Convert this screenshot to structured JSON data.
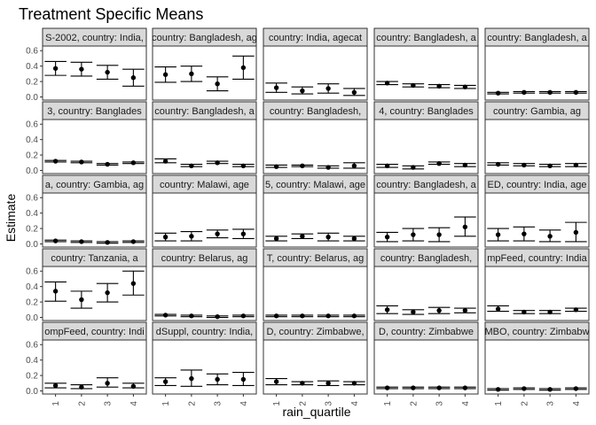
{
  "chart_data": {
    "type": "scatter",
    "title": "Treatment Specific Means",
    "xlabel": "rain_quartile",
    "ylabel": "Estimate",
    "categories": [
      "1",
      "2",
      "3",
      "4"
    ],
    "y_ticks": [
      "0.0",
      "0.2",
      "0.4",
      "0.6"
    ],
    "ylim": [
      -0.04,
      0.66
    ],
    "grid": true,
    "layout": {
      "rows": 5,
      "cols": 5
    },
    "panels": [
      {
        "strip": "S-2002, country: India,",
        "points": [
          {
            "x": "1",
            "est": 0.37,
            "lo": 0.28,
            "hi": 0.46
          },
          {
            "x": "2",
            "est": 0.36,
            "lo": 0.27,
            "hi": 0.45
          },
          {
            "x": "3",
            "est": 0.32,
            "lo": 0.23,
            "hi": 0.41
          },
          {
            "x": "4",
            "est": 0.25,
            "lo": 0.14,
            "hi": 0.36
          }
        ]
      },
      {
        "strip": "country: Bangladesh, ag",
        "points": [
          {
            "x": "1",
            "est": 0.29,
            "lo": 0.19,
            "hi": 0.39
          },
          {
            "x": "2",
            "est": 0.3,
            "lo": 0.2,
            "hi": 0.4
          },
          {
            "x": "3",
            "est": 0.17,
            "lo": 0.08,
            "hi": 0.26
          },
          {
            "x": "4",
            "est": 0.38,
            "lo": 0.23,
            "hi": 0.53
          }
        ]
      },
      {
        "strip": "country: India, agecat",
        "points": [
          {
            "x": "1",
            "est": 0.12,
            "lo": 0.06,
            "hi": 0.18
          },
          {
            "x": "2",
            "est": 0.08,
            "lo": 0.04,
            "hi": 0.13
          },
          {
            "x": "3",
            "est": 0.11,
            "lo": 0.05,
            "hi": 0.17
          },
          {
            "x": "4",
            "est": 0.06,
            "lo": 0.02,
            "hi": 0.11
          }
        ]
      },
      {
        "strip": "country: Bangladesh, a",
        "points": [
          {
            "x": "1",
            "est": 0.18,
            "lo": 0.16,
            "hi": 0.2
          },
          {
            "x": "2",
            "est": 0.15,
            "lo": 0.13,
            "hi": 0.17
          },
          {
            "x": "3",
            "est": 0.14,
            "lo": 0.12,
            "hi": 0.16
          },
          {
            "x": "4",
            "est": 0.13,
            "lo": 0.11,
            "hi": 0.15
          }
        ]
      },
      {
        "strip": "country: Bangladesh, a",
        "points": [
          {
            "x": "1",
            "est": 0.05,
            "lo": 0.04,
            "hi": 0.06
          },
          {
            "x": "2",
            "est": 0.06,
            "lo": 0.05,
            "hi": 0.07
          },
          {
            "x": "3",
            "est": 0.06,
            "lo": 0.05,
            "hi": 0.07
          },
          {
            "x": "4",
            "est": 0.06,
            "lo": 0.05,
            "hi": 0.07
          }
        ]
      },
      {
        "strip": "3, country: Banglades",
        "points": [
          {
            "x": "1",
            "est": 0.12,
            "lo": 0.11,
            "hi": 0.13
          },
          {
            "x": "2",
            "est": 0.11,
            "lo": 0.1,
            "hi": 0.12
          },
          {
            "x": "3",
            "est": 0.08,
            "lo": 0.07,
            "hi": 0.09
          },
          {
            "x": "4",
            "est": 0.1,
            "lo": 0.09,
            "hi": 0.11
          }
        ]
      },
      {
        "strip": "country: Bangladesh, a",
        "points": [
          {
            "x": "1",
            "est": 0.12,
            "lo": 0.1,
            "hi": 0.15
          },
          {
            "x": "2",
            "est": 0.06,
            "lo": 0.05,
            "hi": 0.08
          },
          {
            "x": "3",
            "est": 0.1,
            "lo": 0.09,
            "hi": 0.12
          },
          {
            "x": "4",
            "est": 0.06,
            "lo": 0.05,
            "hi": 0.08
          }
        ]
      },
      {
        "strip": "country: Bangladesh,",
        "points": [
          {
            "x": "1",
            "est": 0.05,
            "lo": 0.04,
            "hi": 0.07
          },
          {
            "x": "2",
            "est": 0.06,
            "lo": 0.05,
            "hi": 0.07
          },
          {
            "x": "3",
            "est": 0.04,
            "lo": 0.03,
            "hi": 0.06
          },
          {
            "x": "4",
            "est": 0.06,
            "lo": 0.03,
            "hi": 0.1
          }
        ]
      },
      {
        "strip": "4, country: Banglades",
        "points": [
          {
            "x": "1",
            "est": 0.06,
            "lo": 0.04,
            "hi": 0.08
          },
          {
            "x": "2",
            "est": 0.04,
            "lo": 0.02,
            "hi": 0.06
          },
          {
            "x": "3",
            "est": 0.09,
            "lo": 0.08,
            "hi": 0.11
          },
          {
            "x": "4",
            "est": 0.07,
            "lo": 0.05,
            "hi": 0.09
          }
        ]
      },
      {
        "strip": "country: Gambia, ag",
        "points": [
          {
            "x": "1",
            "est": 0.08,
            "lo": 0.07,
            "hi": 0.1
          },
          {
            "x": "2",
            "est": 0.07,
            "lo": 0.06,
            "hi": 0.09
          },
          {
            "x": "3",
            "est": 0.06,
            "lo": 0.05,
            "hi": 0.08
          },
          {
            "x": "4",
            "est": 0.07,
            "lo": 0.05,
            "hi": 0.09
          }
        ]
      },
      {
        "strip": "a, country: Gambia, ag",
        "points": [
          {
            "x": "1",
            "est": 0.04,
            "lo": 0.03,
            "hi": 0.05
          },
          {
            "x": "2",
            "est": 0.03,
            "lo": 0.02,
            "hi": 0.04
          },
          {
            "x": "3",
            "est": 0.02,
            "lo": 0.01,
            "hi": 0.03
          },
          {
            "x": "4",
            "est": 0.03,
            "lo": 0.02,
            "hi": 0.04
          }
        ]
      },
      {
        "strip": "country: Malawi, age",
        "points": [
          {
            "x": "1",
            "est": 0.09,
            "lo": 0.04,
            "hi": 0.14
          },
          {
            "x": "2",
            "est": 0.1,
            "lo": 0.04,
            "hi": 0.16
          },
          {
            "x": "3",
            "est": 0.13,
            "lo": 0.08,
            "hi": 0.18
          },
          {
            "x": "4",
            "est": 0.13,
            "lo": 0.07,
            "hi": 0.19
          }
        ]
      },
      {
        "strip": "5, country: Malawi, age",
        "points": [
          {
            "x": "1",
            "est": 0.07,
            "lo": 0.04,
            "hi": 0.1
          },
          {
            "x": "2",
            "est": 0.1,
            "lo": 0.07,
            "hi": 0.13
          },
          {
            "x": "3",
            "est": 0.09,
            "lo": 0.04,
            "hi": 0.14
          },
          {
            "x": "4",
            "est": 0.07,
            "lo": 0.04,
            "hi": 0.1
          }
        ]
      },
      {
        "strip": "country: Bangladesh, a",
        "points": [
          {
            "x": "1",
            "est": 0.09,
            "lo": 0.03,
            "hi": 0.15
          },
          {
            "x": "2",
            "est": 0.12,
            "lo": 0.04,
            "hi": 0.2
          },
          {
            "x": "3",
            "est": 0.12,
            "lo": 0.03,
            "hi": 0.21
          },
          {
            "x": "4",
            "est": 0.22,
            "lo": 0.1,
            "hi": 0.35
          }
        ]
      },
      {
        "strip": "ED, country: India, age",
        "points": [
          {
            "x": "1",
            "est": 0.12,
            "lo": 0.04,
            "hi": 0.2
          },
          {
            "x": "2",
            "est": 0.13,
            "lo": 0.04,
            "hi": 0.22
          },
          {
            "x": "3",
            "est": 0.1,
            "lo": 0.03,
            "hi": 0.18
          },
          {
            "x": "4",
            "est": 0.15,
            "lo": 0.03,
            "hi": 0.28
          }
        ]
      },
      {
        "strip": "country: Tanzania, a",
        "points": [
          {
            "x": "1",
            "est": 0.34,
            "lo": 0.21,
            "hi": 0.46
          },
          {
            "x": "2",
            "est": 0.23,
            "lo": 0.12,
            "hi": 0.34
          },
          {
            "x": "3",
            "est": 0.32,
            "lo": 0.2,
            "hi": 0.44
          },
          {
            "x": "4",
            "est": 0.44,
            "lo": 0.29,
            "hi": 0.6
          }
        ]
      },
      {
        "strip": "country: Belarus, ag",
        "points": [
          {
            "x": "1",
            "est": 0.03,
            "lo": 0.02,
            "hi": 0.04
          },
          {
            "x": "2",
            "est": 0.02,
            "lo": 0.01,
            "hi": 0.03
          },
          {
            "x": "3",
            "est": 0.01,
            "lo": 0.0,
            "hi": 0.02
          },
          {
            "x": "4",
            "est": 0.02,
            "lo": 0.01,
            "hi": 0.03
          }
        ]
      },
      {
        "strip": "T, country: Belarus, ag",
        "points": [
          {
            "x": "1",
            "est": 0.02,
            "lo": 0.01,
            "hi": 0.03
          },
          {
            "x": "2",
            "est": 0.02,
            "lo": 0.01,
            "hi": 0.03
          },
          {
            "x": "3",
            "est": 0.02,
            "lo": 0.01,
            "hi": 0.03
          },
          {
            "x": "4",
            "est": 0.02,
            "lo": 0.01,
            "hi": 0.03
          }
        ]
      },
      {
        "strip": "country: Bangladesh,",
        "points": [
          {
            "x": "1",
            "est": 0.1,
            "lo": 0.05,
            "hi": 0.15
          },
          {
            "x": "2",
            "est": 0.07,
            "lo": 0.04,
            "hi": 0.1
          },
          {
            "x": "3",
            "est": 0.09,
            "lo": 0.05,
            "hi": 0.13
          },
          {
            "x": "4",
            "est": 0.09,
            "lo": 0.06,
            "hi": 0.12
          }
        ]
      },
      {
        "strip": "mpFeed, country: India",
        "points": [
          {
            "x": "1",
            "est": 0.11,
            "lo": 0.08,
            "hi": 0.15
          },
          {
            "x": "2",
            "est": 0.07,
            "lo": 0.05,
            "hi": 0.09
          },
          {
            "x": "3",
            "est": 0.07,
            "lo": 0.05,
            "hi": 0.09
          },
          {
            "x": "4",
            "est": 0.1,
            "lo": 0.08,
            "hi": 0.12
          }
        ]
      },
      {
        "strip": "ompFeed, country: Indi",
        "points": [
          {
            "x": "1",
            "est": 0.07,
            "lo": 0.04,
            "hi": 0.1
          },
          {
            "x": "2",
            "est": 0.05,
            "lo": 0.03,
            "hi": 0.08
          },
          {
            "x": "3",
            "est": 0.1,
            "lo": 0.05,
            "hi": 0.17
          },
          {
            "x": "4",
            "est": 0.06,
            "lo": 0.04,
            "hi": 0.1
          }
        ]
      },
      {
        "strip": "dSuppl, country: India,",
        "points": [
          {
            "x": "1",
            "est": 0.12,
            "lo": 0.07,
            "hi": 0.17
          },
          {
            "x": "2",
            "est": 0.16,
            "lo": 0.06,
            "hi": 0.27
          },
          {
            "x": "3",
            "est": 0.15,
            "lo": 0.08,
            "hi": 0.22
          },
          {
            "x": "4",
            "est": 0.15,
            "lo": 0.07,
            "hi": 0.24
          }
        ]
      },
      {
        "strip": "D, country: Zimbabwe,",
        "points": [
          {
            "x": "1",
            "est": 0.12,
            "lo": 0.08,
            "hi": 0.16
          },
          {
            "x": "2",
            "est": 0.1,
            "lo": 0.08,
            "hi": 0.12
          },
          {
            "x": "3",
            "est": 0.1,
            "lo": 0.07,
            "hi": 0.13
          },
          {
            "x": "4",
            "est": 0.1,
            "lo": 0.08,
            "hi": 0.12
          }
        ]
      },
      {
        "strip": "D, country: Zimbabwe",
        "points": [
          {
            "x": "1",
            "est": 0.04,
            "lo": 0.03,
            "hi": 0.05
          },
          {
            "x": "2",
            "est": 0.04,
            "lo": 0.03,
            "hi": 0.05
          },
          {
            "x": "3",
            "est": 0.04,
            "lo": 0.03,
            "hi": 0.05
          },
          {
            "x": "4",
            "est": 0.04,
            "lo": 0.03,
            "hi": 0.05
          }
        ]
      },
      {
        "strip": "MBO, country: Zimbabw",
        "points": [
          {
            "x": "1",
            "est": 0.02,
            "lo": 0.01,
            "hi": 0.03
          },
          {
            "x": "2",
            "est": 0.03,
            "lo": 0.02,
            "hi": 0.04
          },
          {
            "x": "3",
            "est": 0.02,
            "lo": 0.01,
            "hi": 0.03
          },
          {
            "x": "4",
            "est": 0.03,
            "lo": 0.02,
            "hi": 0.04
          }
        ]
      }
    ]
  }
}
